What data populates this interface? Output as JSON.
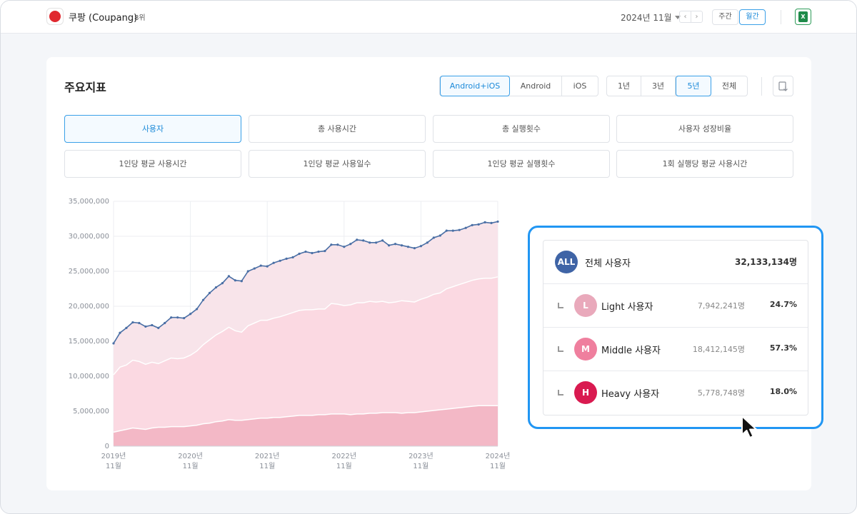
{
  "topbar": {
    "app_name": "쿠팡 (Coupang)",
    "rank": "8위",
    "month": "2024년 11월",
    "prev": "‹",
    "next": "›",
    "weekly": "주간",
    "monthly": "월간",
    "excel_icon": "excel-icon"
  },
  "card": {
    "title": "주요지표",
    "platforms": [
      "Android+iOS",
      "Android",
      "iOS"
    ],
    "platform_selected": "Android+iOS",
    "ranges": [
      "1년",
      "3년",
      "5년",
      "전체"
    ],
    "range_selected": "5년",
    "download_icon": "download-icon",
    "metrics": [
      "사용자",
      "총 사용시간",
      "총 실행횟수",
      "사용자 성장비율",
      "1인당 평균 사용시간",
      "1인당 평균 사용일수",
      "1인당 평균 실행횟수",
      "1회 실행당 평균 사용시간"
    ],
    "metric_selected": "사용자"
  },
  "chart_data": {
    "type": "area",
    "x_ticks": [
      [
        "2019년",
        "11월"
      ],
      [
        "2020년",
        "11월"
      ],
      [
        "2021년",
        "11월"
      ],
      [
        "2022년",
        "11월"
      ],
      [
        "2023년",
        "11월"
      ],
      [
        "2024년",
        "11월"
      ]
    ],
    "y_ticks": [
      "0",
      "5,000,000",
      "10,000,000",
      "15,000,000",
      "20,000,000",
      "25,000,000",
      "30,000,000",
      "35,000,000"
    ],
    "ylim": [
      0,
      35000000
    ],
    "x_range": [
      "2019-11",
      "2024-11"
    ],
    "grid": true,
    "colors": {
      "total": "#4a6fa5",
      "light": "#f8e4ea",
      "middle": "#fbd9e2",
      "heavy": "#f3b8c6"
    },
    "series": [
      {
        "key": "total",
        "values": [
          14.7,
          16.2,
          16.9,
          17.7,
          17.6,
          17.1,
          17.3,
          16.9,
          17.6,
          18.4,
          18.4,
          18.3,
          18.9,
          19.6,
          20.9,
          21.9,
          22.7,
          23.3,
          24.3,
          23.7,
          23.6,
          25.0,
          25.4,
          25.8,
          25.7,
          26.2,
          26.5,
          26.8,
          27.0,
          27.5,
          27.8,
          27.6,
          27.8,
          27.9,
          28.8,
          28.8,
          28.5,
          28.9,
          29.5,
          29.4,
          29.1,
          29.1,
          29.4,
          28.7,
          28.9,
          28.7,
          28.5,
          28.3,
          28.6,
          29.1,
          29.8,
          30.1,
          30.8,
          30.8,
          30.9,
          31.2,
          31.6,
          31.7,
          32.0,
          31.9,
          32.1
        ]
      },
      {
        "key": "middle_plus_heavy",
        "values": [
          10.2,
          11.3,
          11.6,
          12.3,
          12.1,
          11.7,
          12.0,
          11.8,
          12.2,
          12.6,
          12.5,
          12.6,
          13.0,
          13.6,
          14.5,
          15.2,
          15.9,
          16.4,
          17.0,
          16.5,
          16.3,
          17.2,
          17.6,
          18.0,
          18.0,
          18.3,
          18.5,
          18.8,
          19.1,
          19.4,
          19.5,
          19.5,
          19.6,
          19.6,
          20.4,
          20.3,
          20.1,
          20.2,
          20.5,
          20.5,
          20.7,
          20.6,
          20.7,
          20.5,
          20.6,
          20.8,
          20.7,
          20.6,
          21.0,
          21.3,
          21.7,
          21.9,
          22.5,
          22.8,
          23.1,
          23.4,
          23.7,
          23.9,
          24.0,
          24.0,
          24.2
        ]
      },
      {
        "key": "heavy",
        "values": [
          2.0,
          2.2,
          2.4,
          2.6,
          2.5,
          2.4,
          2.6,
          2.7,
          2.7,
          2.8,
          2.8,
          2.8,
          2.9,
          3.0,
          3.2,
          3.3,
          3.5,
          3.6,
          3.8,
          3.7,
          3.7,
          3.8,
          3.9,
          4.0,
          4.0,
          4.1,
          4.1,
          4.2,
          4.3,
          4.4,
          4.4,
          4.4,
          4.5,
          4.5,
          4.6,
          4.6,
          4.6,
          4.5,
          4.6,
          4.6,
          4.7,
          4.7,
          4.8,
          4.8,
          4.8,
          4.7,
          4.8,
          4.8,
          4.9,
          5.0,
          5.1,
          5.2,
          5.3,
          5.4,
          5.5,
          5.6,
          5.7,
          5.8,
          5.8,
          5.8,
          5.8
        ]
      }
    ],
    "unit_scale": 1000000
  },
  "legend": {
    "all_badge": "ALL",
    "all_label": "전체 사용자",
    "all_value": "32,133,134명",
    "rows": [
      {
        "badge": "L",
        "label": "Light 사용자",
        "value": "7,942,241명",
        "pct": "24.7%",
        "color": "#e9a9bb"
      },
      {
        "badge": "M",
        "label": "Middle 사용자",
        "value": "18,412,145명",
        "pct": "57.3%",
        "color": "#ef7f9e"
      },
      {
        "badge": "H",
        "label": "Heavy 사용자",
        "value": "5,778,748명",
        "pct": "18.0%",
        "color": "#d91a50"
      }
    ],
    "all_color": "#3f64a6"
  }
}
